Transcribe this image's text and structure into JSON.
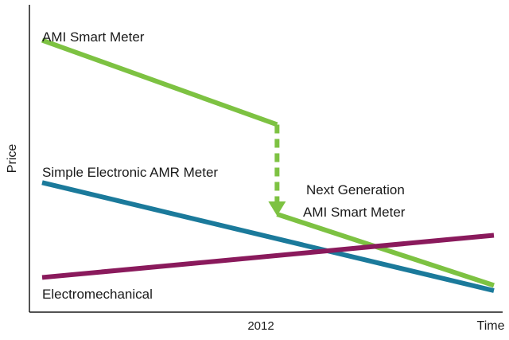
{
  "chart_data": {
    "type": "line",
    "title": "",
    "xlabel": "Time",
    "ylabel": "Price",
    "xlim": [
      0,
      100
    ],
    "ylim": [
      0,
      100
    ],
    "x_ticks": [
      {
        "x": 52,
        "label": "2012"
      }
    ],
    "grid": false,
    "legend": "none (direct series labels)",
    "series": [
      {
        "name": "AMI Smart Meter",
        "color": "#7dc242",
        "style": "solid",
        "points": [
          [
            0,
            95
          ],
          [
            52,
            63
          ]
        ]
      },
      {
        "name": "AMI Smart Meter transition",
        "color": "#7dc242",
        "style": "dashed-arrow",
        "points": [
          [
            52,
            63
          ],
          [
            52,
            29
          ]
        ]
      },
      {
        "name": "Next Generation AMI Smart Meter",
        "color": "#7dc242",
        "style": "solid",
        "points": [
          [
            52,
            29
          ],
          [
            100,
            2
          ]
        ]
      },
      {
        "name": "Simple Electronic AMR Meter",
        "color": "#1b7a9b",
        "style": "solid",
        "points": [
          [
            0,
            41
          ],
          [
            100,
            0
          ]
        ]
      },
      {
        "name": "Electromechanical",
        "color": "#8a1a5c",
        "style": "solid",
        "points": [
          [
            0,
            5
          ],
          [
            100,
            21
          ]
        ]
      }
    ],
    "labels": {
      "ami": "AMI Smart Meter",
      "amr": "Simple Electronic AMR Meter",
      "next_line1": "Next Generation",
      "next_line2": "AMI Smart Meter",
      "electro": "Electromechanical"
    }
  }
}
